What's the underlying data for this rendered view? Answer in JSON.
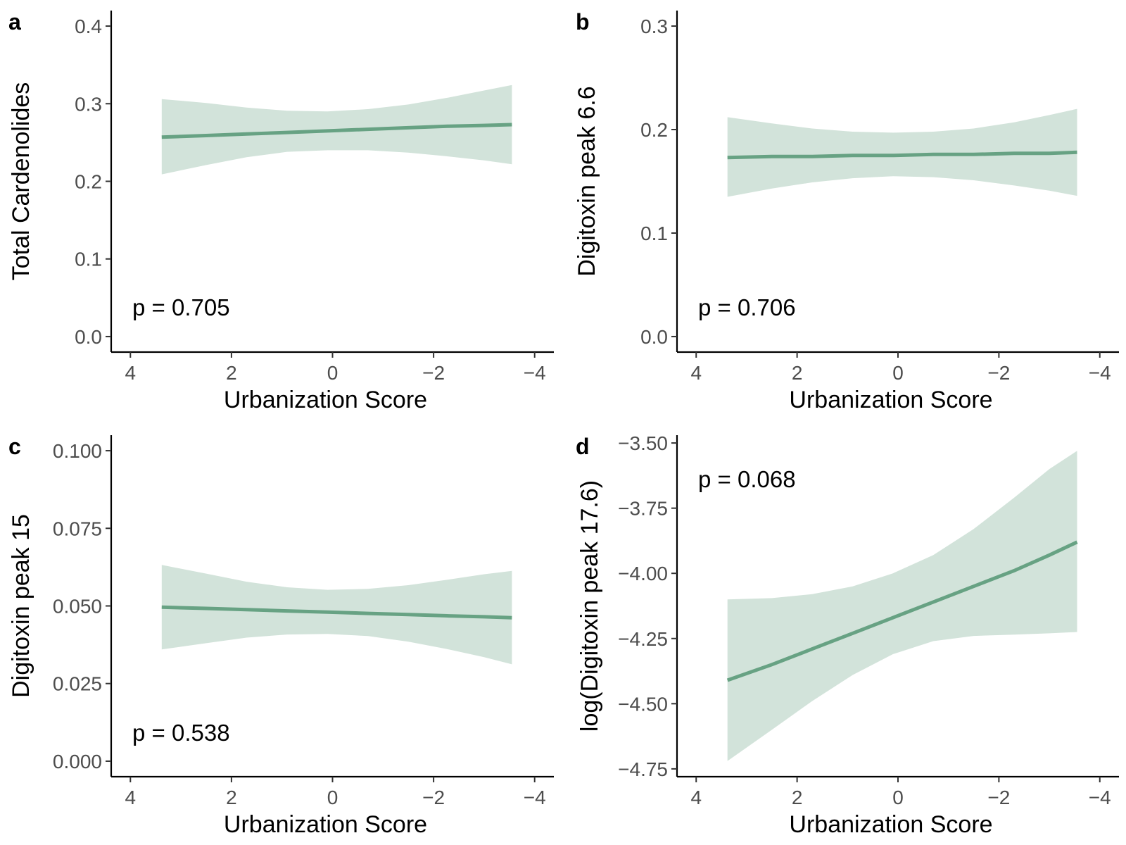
{
  "colors": {
    "line": "#67a283",
    "band": "#d2e3da"
  },
  "chart_data": [
    {
      "type": "line",
      "panel": "a",
      "xlabel": "Urbanization Score",
      "ylabel": "Total Cardenolides",
      "annotation": "p = 0.705",
      "x_reversed": true,
      "xlim": [
        4.38,
        -4.38
      ],
      "xticks": [
        4,
        2,
        0,
        -2,
        -4
      ],
      "xtick_labels": [
        "4",
        "2",
        "0",
        "−2",
        "−4"
      ],
      "ylim": [
        -0.02,
        0.42
      ],
      "yticks": [
        0.0,
        0.1,
        0.2,
        0.3,
        0.4
      ],
      "ytick_labels": [
        "0.0",
        "0.1",
        "0.2",
        "0.3",
        "0.4"
      ],
      "series": [
        {
          "x": [
            3.38,
            2.5,
            1.7,
            0.9,
            0.1,
            -0.7,
            -1.5,
            -2.3,
            -3.0,
            -3.55
          ],
          "y": [
            0.257,
            0.259,
            0.261,
            0.263,
            0.265,
            0.267,
            0.269,
            0.271,
            0.272,
            0.273
          ],
          "lower": [
            0.209,
            0.221,
            0.231,
            0.238,
            0.24,
            0.24,
            0.237,
            0.232,
            0.227,
            0.222
          ],
          "upper": [
            0.306,
            0.301,
            0.295,
            0.291,
            0.29,
            0.293,
            0.299,
            0.308,
            0.317,
            0.324
          ]
        }
      ]
    },
    {
      "type": "line",
      "panel": "b",
      "xlabel": "Urbanization Score",
      "ylabel": "Digitoxin peak 6.6",
      "annotation": "p = 0.706",
      "x_reversed": true,
      "xlim": [
        4.38,
        -4.38
      ],
      "xticks": [
        4,
        2,
        0,
        -2,
        -4
      ],
      "xtick_labels": [
        "4",
        "2",
        "0",
        "−2",
        "−4"
      ],
      "ylim": [
        -0.015,
        0.315
      ],
      "yticks": [
        0.0,
        0.1,
        0.2,
        0.3
      ],
      "ytick_labels": [
        "0.0",
        "0.1",
        "0.2",
        "0.3"
      ],
      "series": [
        {
          "x": [
            3.38,
            2.5,
            1.7,
            0.9,
            0.1,
            -0.7,
            -1.5,
            -2.3,
            -3.0,
            -3.55
          ],
          "y": [
            0.173,
            0.174,
            0.174,
            0.175,
            0.175,
            0.176,
            0.176,
            0.177,
            0.177,
            0.178
          ],
          "lower": [
            0.135,
            0.143,
            0.149,
            0.153,
            0.155,
            0.154,
            0.151,
            0.146,
            0.141,
            0.136
          ],
          "upper": [
            0.212,
            0.206,
            0.201,
            0.198,
            0.197,
            0.198,
            0.201,
            0.207,
            0.214,
            0.22
          ]
        }
      ]
    },
    {
      "type": "line",
      "panel": "c",
      "xlabel": "Urbanization Score",
      "ylabel": "Digitoxin peak 15",
      "annotation": "p = 0.538",
      "x_reversed": true,
      "xlim": [
        4.38,
        -4.38
      ],
      "xticks": [
        4,
        2,
        0,
        -2,
        -4
      ],
      "xtick_labels": [
        "4",
        "2",
        "0",
        "−2",
        "−4"
      ],
      "ylim": [
        -0.005,
        0.105
      ],
      "yticks": [
        0.0,
        0.025,
        0.05,
        0.075,
        0.1
      ],
      "ytick_labels": [
        "0.000",
        "0.025",
        "0.050",
        "0.075",
        "0.100"
      ],
      "series": [
        {
          "x": [
            3.38,
            2.5,
            1.7,
            0.9,
            0.1,
            -0.7,
            -1.5,
            -2.3,
            -3.0,
            -3.55
          ],
          "y": [
            0.0496,
            0.0492,
            0.0488,
            0.0484,
            0.048,
            0.0476,
            0.0472,
            0.0468,
            0.0465,
            0.0462
          ],
          "lower": [
            0.036,
            0.038,
            0.0398,
            0.0408,
            0.041,
            0.0403,
            0.0385,
            0.036,
            0.0335,
            0.0312
          ],
          "upper": [
            0.0632,
            0.0604,
            0.0578,
            0.056,
            0.0552,
            0.0555,
            0.0567,
            0.0585,
            0.0602,
            0.0613
          ]
        }
      ]
    },
    {
      "type": "line",
      "panel": "d",
      "xlabel": "Urbanization Score",
      "ylabel": "log(Digitoxin peak 17.6)",
      "annotation": "p = 0.068",
      "x_reversed": true,
      "xlim": [
        4.38,
        -4.38
      ],
      "xticks": [
        4,
        2,
        0,
        -2,
        -4
      ],
      "xtick_labels": [
        "4",
        "2",
        "0",
        "−2",
        "−4"
      ],
      "ylim": [
        -4.78,
        -3.47
      ],
      "yticks": [
        -4.75,
        -4.5,
        -4.25,
        -4.0,
        -3.75,
        -3.5
      ],
      "ytick_labels": [
        "−4.75",
        "−4.50",
        "−4.25",
        "−4.00",
        "−3.75",
        "−3.50"
      ],
      "series": [
        {
          "x": [
            3.38,
            2.5,
            1.7,
            0.9,
            0.1,
            -0.7,
            -1.5,
            -2.3,
            -3.0,
            -3.55
          ],
          "y": [
            -4.41,
            -4.35,
            -4.29,
            -4.23,
            -4.17,
            -4.11,
            -4.05,
            -3.99,
            -3.93,
            -3.88
          ],
          "lower": [
            -4.72,
            -4.6,
            -4.49,
            -4.39,
            -4.31,
            -4.26,
            -4.24,
            -4.235,
            -4.23,
            -4.225
          ],
          "upper": [
            -4.1,
            -4.095,
            -4.08,
            -4.05,
            -4.0,
            -3.93,
            -3.83,
            -3.71,
            -3.6,
            -3.53
          ]
        }
      ]
    }
  ]
}
